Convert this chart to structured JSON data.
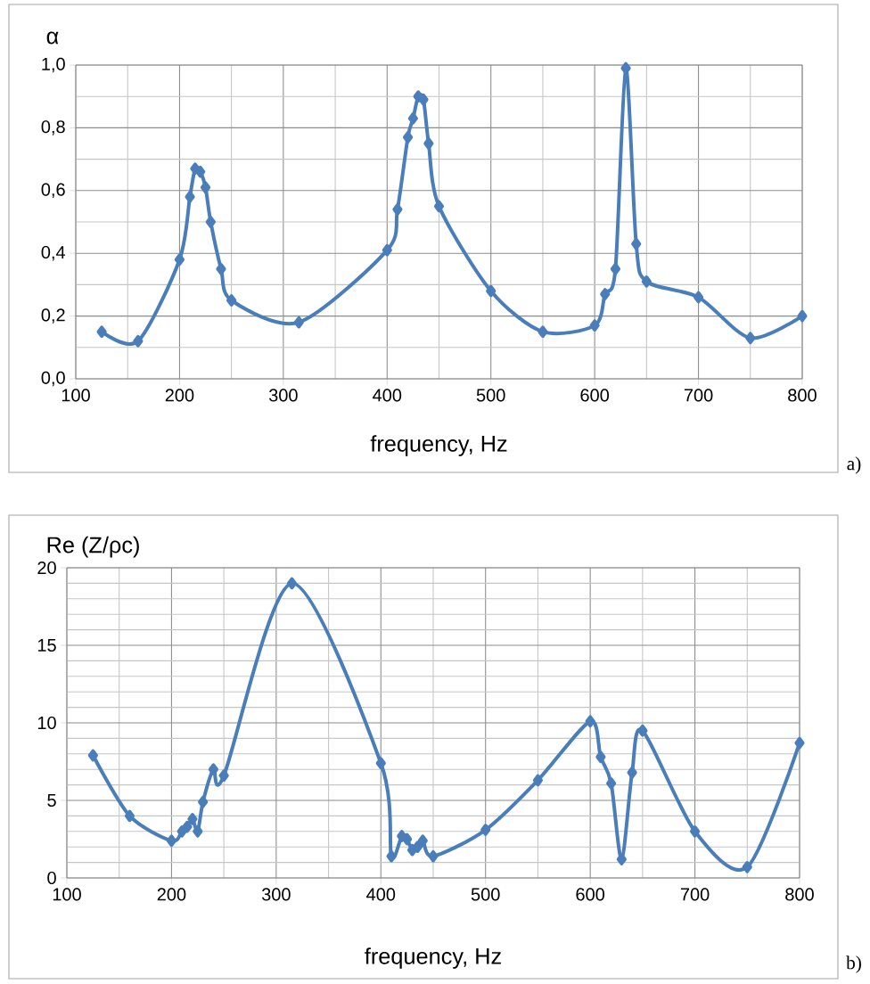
{
  "chart_data": [
    {
      "type": "line",
      "ylabel": "α",
      "xlabel": "frequency, Hz",
      "annotations": [
        "a)"
      ],
      "x": [
        125,
        160,
        200,
        210,
        215,
        220,
        225,
        230,
        240,
        250,
        315,
        400,
        410,
        420,
        425,
        430,
        435,
        440,
        450,
        500,
        550,
        600,
        610,
        620,
        630,
        640,
        650,
        700,
        750,
        800
      ],
      "series": [
        {
          "color": "#4a7ebb",
          "values": [
            0.15,
            0.12,
            0.38,
            0.58,
            0.67,
            0.66,
            0.61,
            0.5,
            0.35,
            0.25,
            0.18,
            0.41,
            0.54,
            0.77,
            0.83,
            0.9,
            0.89,
            0.75,
            0.55,
            0.28,
            0.15,
            0.17,
            0.27,
            0.35,
            0.99,
            0.43,
            0.31,
            0.26,
            0.13,
            0.2
          ]
        }
      ],
      "xlim": [
        100,
        800
      ],
      "xticks": [
        100,
        200,
        300,
        400,
        500,
        600,
        700,
        800
      ],
      "ylim": [
        0,
        1
      ],
      "yticks": [
        {
          "value": 0,
          "label": "0,0"
        },
        {
          "value": 0.2,
          "label": "0,2"
        },
        {
          "value": 0.4,
          "label": "0,4"
        },
        {
          "value": 0.6,
          "label": "0,6"
        },
        {
          "value": 0.8,
          "label": "0,8"
        },
        {
          "value": 1,
          "label": "1,0"
        }
      ],
      "grid": true,
      "marker": "diamond",
      "line_style": "solid"
    },
    {
      "type": "line",
      "ylabel": "Re (Z/ρc)",
      "xlabel": "frequency, Hz",
      "annotations": [
        "b)"
      ],
      "x": [
        125,
        160,
        200,
        210,
        215,
        220,
        225,
        230,
        240,
        250,
        315,
        400,
        410,
        420,
        425,
        430,
        435,
        440,
        450,
        500,
        550,
        600,
        610,
        620,
        630,
        640,
        650,
        700,
        750,
        800
      ],
      "series": [
        {
          "color": "#4a7ebb",
          "values": [
            7.9,
            4.0,
            2.4,
            3.0,
            3.3,
            3.8,
            3.0,
            4.9,
            7.0,
            6.6,
            19.0,
            7.4,
            1.4,
            2.7,
            2.5,
            1.8,
            2.0,
            2.4,
            1.4,
            3.1,
            6.3,
            10.1,
            7.8,
            6.1,
            1.2,
            6.8,
            9.5,
            3.0,
            0.7,
            8.7
          ]
        }
      ],
      "xlim": [
        100,
        800
      ],
      "xticks": [
        100,
        200,
        300,
        400,
        500,
        600,
        700,
        800
      ],
      "ylim": [
        0,
        20
      ],
      "yticks": [
        0,
        5,
        10,
        15,
        20
      ],
      "grid": true,
      "marker": "diamond",
      "line_style": "solid"
    }
  ]
}
